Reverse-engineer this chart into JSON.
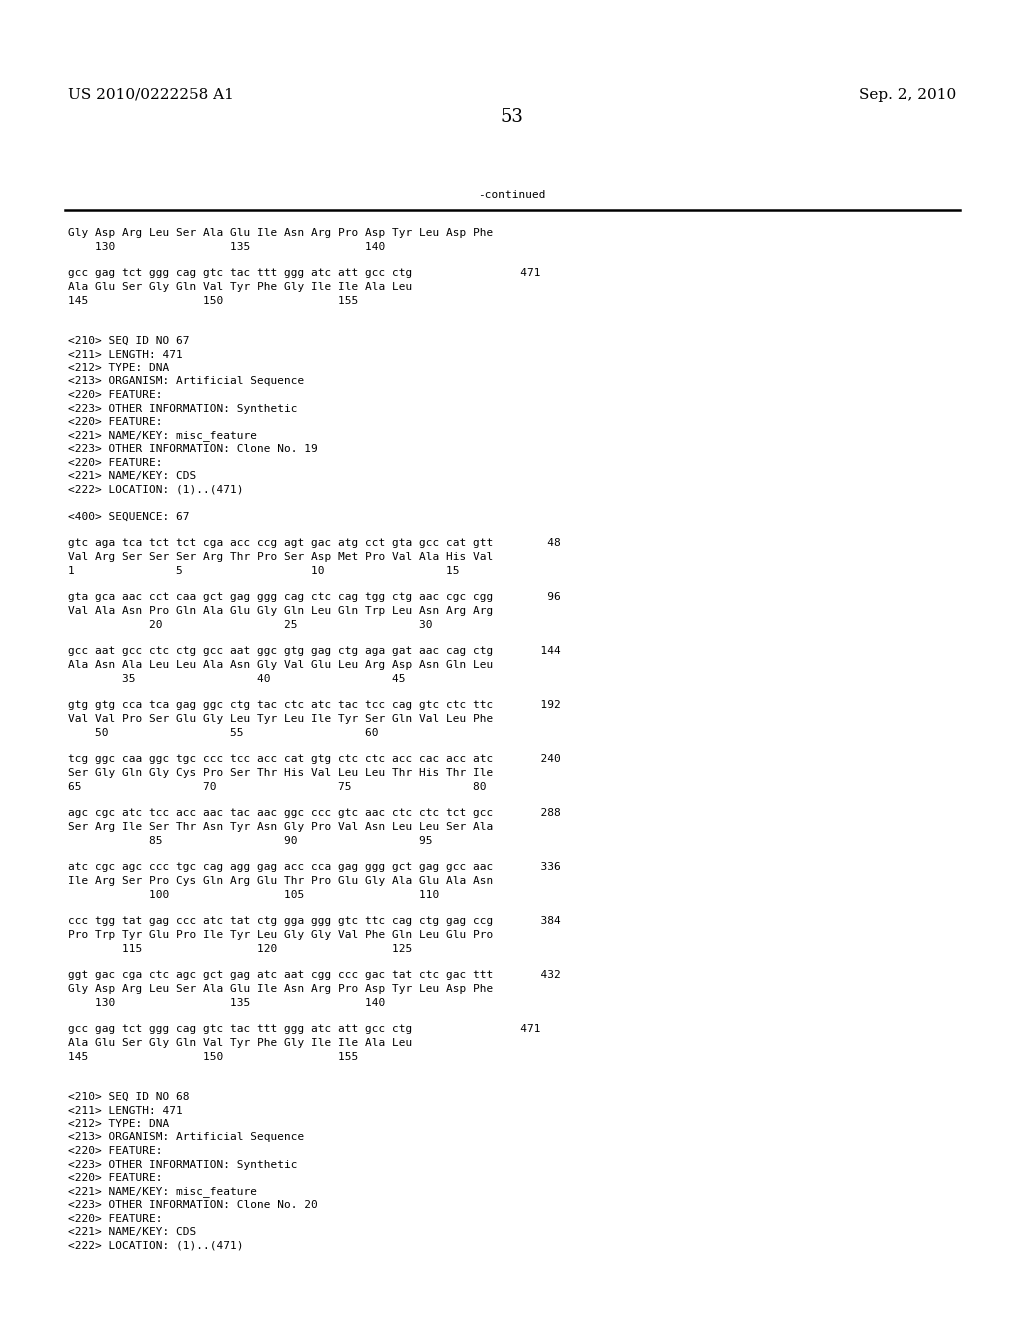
{
  "header_left": "US 2010/0222258 A1",
  "header_right": "Sep. 2, 2010",
  "page_number": "53",
  "continued_label": "-continued",
  "background_color": "#ffffff",
  "text_color": "#000000",
  "font_size_header": 11,
  "font_size_page_num": 13,
  "font_size_body": 8.0,
  "content_lines": [
    {
      "text": "Gly Asp Arg Leu Ser Ala Glu Ile Asn Arg Pro Asp Tyr Leu Asp Phe"
    },
    {
      "text": "    130                 135                 140"
    },
    {
      "text": ""
    },
    {
      "text": "gcc gag tct ggg cag gtc tac ttt ggg atc att gcc ctg                471"
    },
    {
      "text": "Ala Glu Ser Gly Gln Val Tyr Phe Gly Ile Ile Ala Leu"
    },
    {
      "text": "145                 150                 155"
    },
    {
      "text": ""
    },
    {
      "text": ""
    },
    {
      "text": "<210> SEQ ID NO 67"
    },
    {
      "text": "<211> LENGTH: 471"
    },
    {
      "text": "<212> TYPE: DNA"
    },
    {
      "text": "<213> ORGANISM: Artificial Sequence"
    },
    {
      "text": "<220> FEATURE:"
    },
    {
      "text": "<223> OTHER INFORMATION: Synthetic"
    },
    {
      "text": "<220> FEATURE:"
    },
    {
      "text": "<221> NAME/KEY: misc_feature"
    },
    {
      "text": "<223> OTHER INFORMATION: Clone No. 19"
    },
    {
      "text": "<220> FEATURE:"
    },
    {
      "text": "<221> NAME/KEY: CDS"
    },
    {
      "text": "<222> LOCATION: (1)..(471)"
    },
    {
      "text": ""
    },
    {
      "text": "<400> SEQUENCE: 67"
    },
    {
      "text": ""
    },
    {
      "text": "gtc aga tca tct tct cga acc ccg agt gac atg cct gta gcc cat gtt        48"
    },
    {
      "text": "Val Arg Ser Ser Ser Arg Thr Pro Ser Asp Met Pro Val Ala His Val"
    },
    {
      "text": "1               5                   10                  15"
    },
    {
      "text": ""
    },
    {
      "text": "gta gca aac cct caa gct gag ggg cag ctc cag tgg ctg aac cgc cgg        96"
    },
    {
      "text": "Val Ala Asn Pro Gln Ala Glu Gly Gln Leu Gln Trp Leu Asn Arg Arg"
    },
    {
      "text": "            20                  25                  30"
    },
    {
      "text": ""
    },
    {
      "text": "gcc aat gcc ctc ctg gcc aat ggc gtg gag ctg aga gat aac cag ctg       144"
    },
    {
      "text": "Ala Asn Ala Leu Leu Ala Asn Gly Val Glu Leu Arg Asp Asn Gln Leu"
    },
    {
      "text": "        35                  40                  45"
    },
    {
      "text": ""
    },
    {
      "text": "gtg gtg cca tca gag ggc ctg tac ctc atc tac tcc cag gtc ctc ttc       192"
    },
    {
      "text": "Val Val Pro Ser Glu Gly Leu Tyr Leu Ile Tyr Ser Gln Val Leu Phe"
    },
    {
      "text": "    50                  55                  60"
    },
    {
      "text": ""
    },
    {
      "text": "tcg ggc caa ggc tgc ccc tcc acc cat gtg ctc ctc acc cac acc atc       240"
    },
    {
      "text": "Ser Gly Gln Gly Cys Pro Ser Thr His Val Leu Leu Thr His Thr Ile"
    },
    {
      "text": "65                  70                  75                  80"
    },
    {
      "text": ""
    },
    {
      "text": "agc cgc atc tcc acc aac tac aac ggc ccc gtc aac ctc ctc tct gcc       288"
    },
    {
      "text": "Ser Arg Ile Ser Thr Asn Tyr Asn Gly Pro Val Asn Leu Leu Ser Ala"
    },
    {
      "text": "            85                  90                  95"
    },
    {
      "text": ""
    },
    {
      "text": "atc cgc agc ccc tgc cag agg gag acc cca gag ggg gct gag gcc aac       336"
    },
    {
      "text": "Ile Arg Ser Pro Cys Gln Arg Glu Thr Pro Glu Gly Ala Glu Ala Asn"
    },
    {
      "text": "            100                 105                 110"
    },
    {
      "text": ""
    },
    {
      "text": "ccc tgg tat gag ccc atc tat ctg gga ggg gtc ttc cag ctg gag ccg       384"
    },
    {
      "text": "Pro Trp Tyr Glu Pro Ile Tyr Leu Gly Gly Val Phe Gln Leu Glu Pro"
    },
    {
      "text": "        115                 120                 125"
    },
    {
      "text": ""
    },
    {
      "text": "ggt gac cga ctc agc gct gag atc aat cgg ccc gac tat ctc gac ttt       432"
    },
    {
      "text": "Gly Asp Arg Leu Ser Ala Glu Ile Asn Arg Pro Asp Tyr Leu Asp Phe"
    },
    {
      "text": "    130                 135                 140"
    },
    {
      "text": ""
    },
    {
      "text": "gcc gag tct ggg cag gtc tac ttt ggg atc att gcc ctg                471"
    },
    {
      "text": "Ala Glu Ser Gly Gln Val Tyr Phe Gly Ile Ile Ala Leu"
    },
    {
      "text": "145                 150                 155"
    },
    {
      "text": ""
    },
    {
      "text": ""
    },
    {
      "text": "<210> SEQ ID NO 68"
    },
    {
      "text": "<211> LENGTH: 471"
    },
    {
      "text": "<212> TYPE: DNA"
    },
    {
      "text": "<213> ORGANISM: Artificial Sequence"
    },
    {
      "text": "<220> FEATURE:"
    },
    {
      "text": "<223> OTHER INFORMATION: Synthetic"
    },
    {
      "text": "<220> FEATURE:"
    },
    {
      "text": "<221> NAME/KEY: misc_feature"
    },
    {
      "text": "<223> OTHER INFORMATION: Clone No. 20"
    },
    {
      "text": "<220> FEATURE:"
    },
    {
      "text": "<221> NAME/KEY: CDS"
    },
    {
      "text": "<222> LOCATION: (1)..(471)"
    }
  ]
}
